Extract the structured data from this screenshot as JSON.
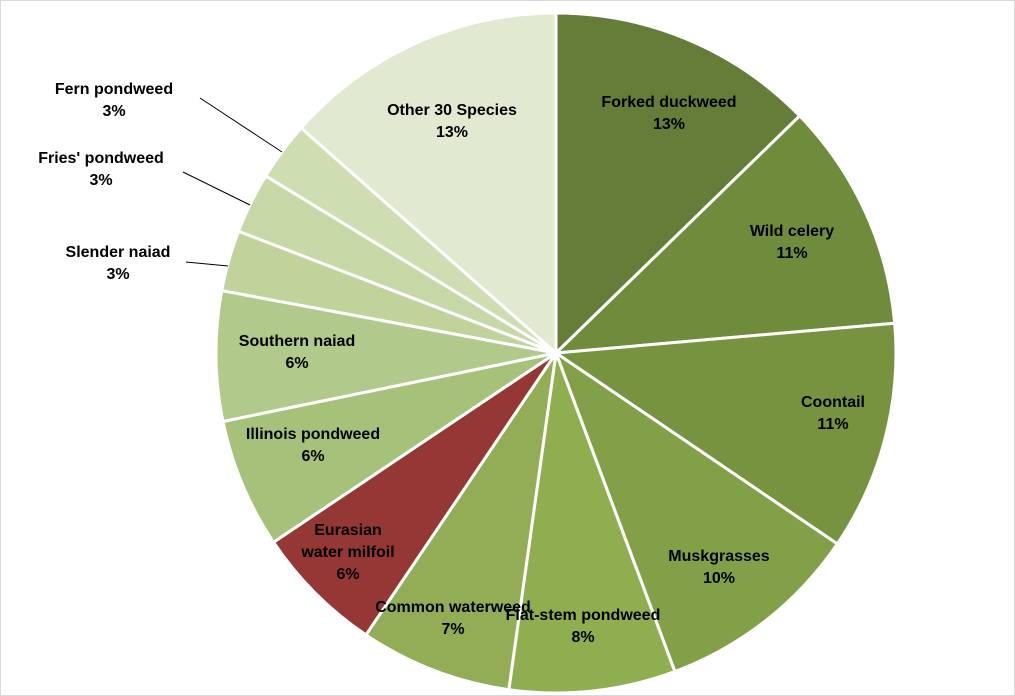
{
  "chart_data": {
    "type": "pie",
    "start_angle_deg": 0,
    "direction": "clockwise",
    "slices": [
      {
        "label": "Forked duckweed",
        "pct_text": "13%",
        "value": 13.2,
        "color": "#667d39"
      },
      {
        "label": "Wild celery",
        "pct_text": "11%",
        "value": 11.3,
        "color": "#6f8b3c"
      },
      {
        "label": "Coontail",
        "pct_text": "11%",
        "value": 11.3,
        "color": "#789340"
      },
      {
        "label": "Muskgrasses",
        "pct_text": "10%",
        "value": 10.2,
        "color": "#82a047"
      },
      {
        "label": "Flat-stem pondweed",
        "pct_text": "8%",
        "value": 8.2,
        "color": "#8eae50"
      },
      {
        "label": "Common waterweed",
        "pct_text": "7%",
        "value": 7.5,
        "color": "#92ad55"
      },
      {
        "label": "Eurasian water milfoil",
        "pct_text": "6%",
        "value": 6.4,
        "color": "#953735"
      },
      {
        "label": "Illinois pondweed",
        "pct_text": "6%",
        "value": 6.4,
        "color": "#a6c27a"
      },
      {
        "label": "Southern naiad",
        "pct_text": "6%",
        "value": 6.4,
        "color": "#b1c98a"
      },
      {
        "label": "Slender naiad",
        "pct_text": "3%",
        "value": 3.0,
        "color": "#bfd39b"
      },
      {
        "label": "Fries' pondweed",
        "pct_text": "3%",
        "value": 3.0,
        "color": "#c6d8a5"
      },
      {
        "label": "Fern pondweed",
        "pct_text": "3%",
        "value": 2.9,
        "color": "#cfdeb2"
      },
      {
        "label": "Other 30 Species",
        "pct_text": "13%",
        "value": 14.0,
        "color": "#e1e9d1"
      }
    ]
  }
}
